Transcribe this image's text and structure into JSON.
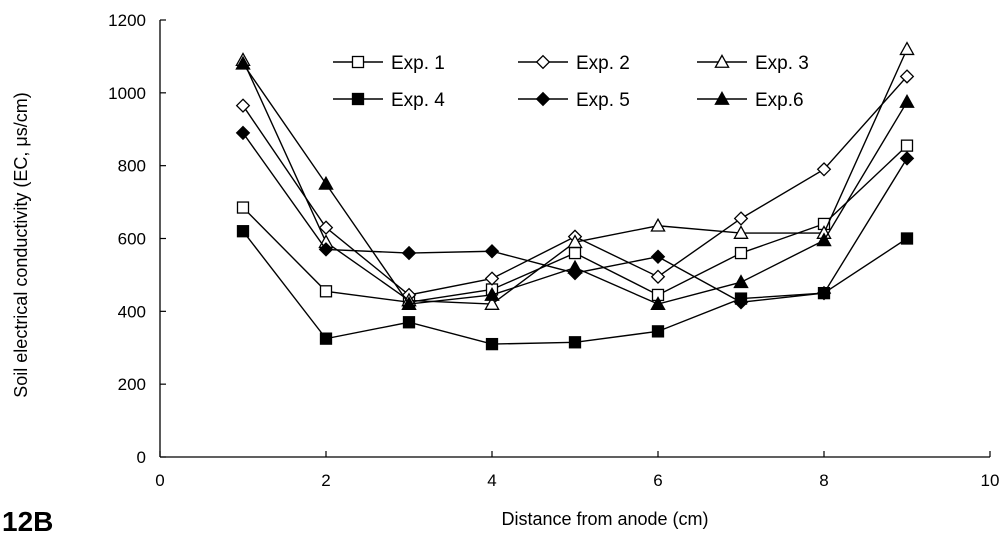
{
  "panel_label": "12B",
  "chart_data": {
    "type": "line",
    "xlabel": "Distance from anode (cm)",
    "ylabel": "Soil electrical conductivity (EC, μs/cm)",
    "xlim": [
      0,
      10
    ],
    "ylim": [
      0,
      1200
    ],
    "xticks": [
      0,
      2,
      4,
      6,
      8,
      10
    ],
    "yticks": [
      0,
      200,
      400,
      600,
      800,
      1000,
      1200
    ],
    "grid": false,
    "legend_position": "top-center",
    "x": [
      1,
      2,
      3,
      4,
      5,
      6,
      7,
      8,
      9
    ],
    "series": [
      {
        "name": "Exp. 1",
        "marker": "square-open",
        "values": [
          685,
          455,
          425,
          460,
          560,
          445,
          560,
          640,
          855
        ]
      },
      {
        "name": "Exp. 2",
        "marker": "diamond-open",
        "values": [
          965,
          630,
          445,
          490,
          605,
          495,
          655,
          790,
          1045
        ]
      },
      {
        "name": "Exp. 3",
        "marker": "triangle-open",
        "values": [
          1090,
          590,
          430,
          420,
          590,
          635,
          615,
          615,
          1120
        ]
      },
      {
        "name": "Exp. 4",
        "marker": "square-filled",
        "values": [
          620,
          325,
          370,
          310,
          315,
          345,
          435,
          450,
          600
        ]
      },
      {
        "name": "Exp. 5",
        "marker": "diamond-filled",
        "values": [
          890,
          570,
          560,
          565,
          505,
          550,
          425,
          450,
          820
        ]
      },
      {
        "name": "Exp.6",
        "marker": "triangle-filled",
        "values": [
          1080,
          750,
          420,
          445,
          520,
          420,
          480,
          595,
          975
        ]
      }
    ]
  }
}
